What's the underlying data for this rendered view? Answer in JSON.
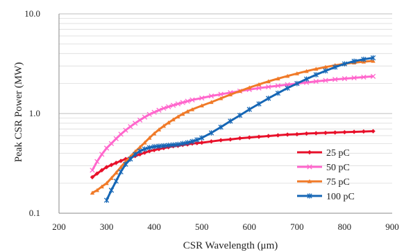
{
  "chart_data": {
    "type": "line",
    "title": "",
    "xlabel": "CSR Wavelength (μm)",
    "ylabel": "Peak CSR Power (MW)",
    "x_scale": "linear",
    "y_scale": "log",
    "xlim": [
      200,
      900
    ],
    "ylim": [
      0.1,
      10
    ],
    "x_ticks": [
      "200",
      "300",
      "400",
      "500",
      "600",
      "700",
      "800",
      "900"
    ],
    "x_tick_values": [
      200,
      300,
      400,
      500,
      600,
      700,
      800,
      900
    ],
    "y_ticks": [
      "0.1",
      "1.0",
      "10.0"
    ],
    "y_tick_values": [
      0.1,
      1,
      10
    ],
    "grid": "on (log minor gridlines)",
    "legend_position": "bottom-right",
    "series": [
      {
        "name": "25 pC",
        "color": "#e8102a",
        "marker": "diamond",
        "points": [
          [
            270,
            0.23
          ],
          [
            280,
            0.25
          ],
          [
            290,
            0.27
          ],
          [
            300,
            0.29
          ],
          [
            310,
            0.305
          ],
          [
            320,
            0.32
          ],
          [
            330,
            0.335
          ],
          [
            340,
            0.35
          ],
          [
            350,
            0.36
          ],
          [
            360,
            0.375
          ],
          [
            370,
            0.39
          ],
          [
            380,
            0.405
          ],
          [
            390,
            0.42
          ],
          [
            400,
            0.43
          ],
          [
            410,
            0.44
          ],
          [
            420,
            0.45
          ],
          [
            430,
            0.46
          ],
          [
            440,
            0.47
          ],
          [
            450,
            0.475
          ],
          [
            460,
            0.485
          ],
          [
            470,
            0.49
          ],
          [
            480,
            0.5
          ],
          [
            490,
            0.505
          ],
          [
            500,
            0.51
          ],
          [
            520,
            0.525
          ],
          [
            540,
            0.54
          ],
          [
            560,
            0.55
          ],
          [
            580,
            0.565
          ],
          [
            600,
            0.575
          ],
          [
            620,
            0.585
          ],
          [
            640,
            0.595
          ],
          [
            660,
            0.605
          ],
          [
            680,
            0.615
          ],
          [
            700,
            0.62
          ],
          [
            720,
            0.63
          ],
          [
            740,
            0.635
          ],
          [
            760,
            0.64
          ],
          [
            780,
            0.645
          ],
          [
            800,
            0.65
          ],
          [
            820,
            0.655
          ],
          [
            840,
            0.66
          ],
          [
            860,
            0.665
          ]
        ]
      },
      {
        "name": "50 pC",
        "color": "#ff66cc",
        "marker": "x",
        "points": [
          [
            270,
            0.27
          ],
          [
            280,
            0.33
          ],
          [
            290,
            0.39
          ],
          [
            300,
            0.45
          ],
          [
            310,
            0.5
          ],
          [
            320,
            0.56
          ],
          [
            330,
            0.62
          ],
          [
            340,
            0.68
          ],
          [
            350,
            0.74
          ],
          [
            360,
            0.8
          ],
          [
            370,
            0.86
          ],
          [
            380,
            0.92
          ],
          [
            390,
            0.98
          ],
          [
            400,
            1.03
          ],
          [
            410,
            1.08
          ],
          [
            420,
            1.13
          ],
          [
            430,
            1.17
          ],
          [
            440,
            1.21
          ],
          [
            450,
            1.25
          ],
          [
            460,
            1.29
          ],
          [
            470,
            1.33
          ],
          [
            480,
            1.37
          ],
          [
            500,
            1.43
          ],
          [
            520,
            1.5
          ],
          [
            540,
            1.56
          ],
          [
            560,
            1.62
          ],
          [
            580,
            1.68
          ],
          [
            600,
            1.74
          ],
          [
            620,
            1.8
          ],
          [
            640,
            1.85
          ],
          [
            660,
            1.9
          ],
          [
            680,
            1.95
          ],
          [
            700,
            2.0
          ],
          [
            720,
            2.05
          ],
          [
            740,
            2.1
          ],
          [
            760,
            2.15
          ],
          [
            780,
            2.2
          ],
          [
            800,
            2.24
          ],
          [
            820,
            2.28
          ],
          [
            840,
            2.32
          ],
          [
            860,
            2.36
          ]
        ]
      },
      {
        "name": "75 pC",
        "color": "#f07a28",
        "marker": "triangle",
        "points": [
          [
            270,
            0.16
          ],
          [
            280,
            0.17
          ],
          [
            290,
            0.185
          ],
          [
            300,
            0.2
          ],
          [
            310,
            0.225
          ],
          [
            320,
            0.255
          ],
          [
            330,
            0.29
          ],
          [
            340,
            0.33
          ],
          [
            350,
            0.37
          ],
          [
            360,
            0.415
          ],
          [
            370,
            0.46
          ],
          [
            380,
            0.51
          ],
          [
            390,
            0.57
          ],
          [
            400,
            0.63
          ],
          [
            410,
            0.69
          ],
          [
            420,
            0.75
          ],
          [
            430,
            0.81
          ],
          [
            440,
            0.87
          ],
          [
            450,
            0.93
          ],
          [
            460,
            0.99
          ],
          [
            470,
            1.05
          ],
          [
            480,
            1.1
          ],
          [
            500,
            1.2
          ],
          [
            520,
            1.3
          ],
          [
            540,
            1.42
          ],
          [
            560,
            1.55
          ],
          [
            580,
            1.68
          ],
          [
            600,
            1.82
          ],
          [
            620,
            1.96
          ],
          [
            640,
            2.1
          ],
          [
            660,
            2.24
          ],
          [
            680,
            2.38
          ],
          [
            700,
            2.52
          ],
          [
            720,
            2.66
          ],
          [
            740,
            2.8
          ],
          [
            760,
            2.93
          ],
          [
            780,
            3.05
          ],
          [
            800,
            3.15
          ],
          [
            820,
            3.24
          ],
          [
            840,
            3.31
          ],
          [
            860,
            3.37
          ]
        ]
      },
      {
        "name": "100 pC",
        "color": "#1566b5",
        "marker": "star",
        "points": [
          [
            300,
            0.135
          ],
          [
            310,
            0.17
          ],
          [
            320,
            0.21
          ],
          [
            330,
            0.26
          ],
          [
            340,
            0.31
          ],
          [
            350,
            0.35
          ],
          [
            360,
            0.39
          ],
          [
            370,
            0.42
          ],
          [
            380,
            0.44
          ],
          [
            390,
            0.455
          ],
          [
            400,
            0.465
          ],
          [
            410,
            0.47
          ],
          [
            420,
            0.475
          ],
          [
            430,
            0.48
          ],
          [
            440,
            0.485
          ],
          [
            450,
            0.49
          ],
          [
            460,
            0.5
          ],
          [
            470,
            0.51
          ],
          [
            480,
            0.525
          ],
          [
            490,
            0.545
          ],
          [
            500,
            0.57
          ],
          [
            520,
            0.64
          ],
          [
            540,
            0.73
          ],
          [
            560,
            0.84
          ],
          [
            580,
            0.96
          ],
          [
            600,
            1.1
          ],
          [
            620,
            1.25
          ],
          [
            640,
            1.42
          ],
          [
            660,
            1.6
          ],
          [
            680,
            1.8
          ],
          [
            700,
            2.0
          ],
          [
            720,
            2.22
          ],
          [
            740,
            2.45
          ],
          [
            760,
            2.68
          ],
          [
            780,
            2.92
          ],
          [
            800,
            3.15
          ],
          [
            820,
            3.35
          ],
          [
            840,
            3.5
          ],
          [
            860,
            3.62
          ]
        ]
      }
    ]
  }
}
